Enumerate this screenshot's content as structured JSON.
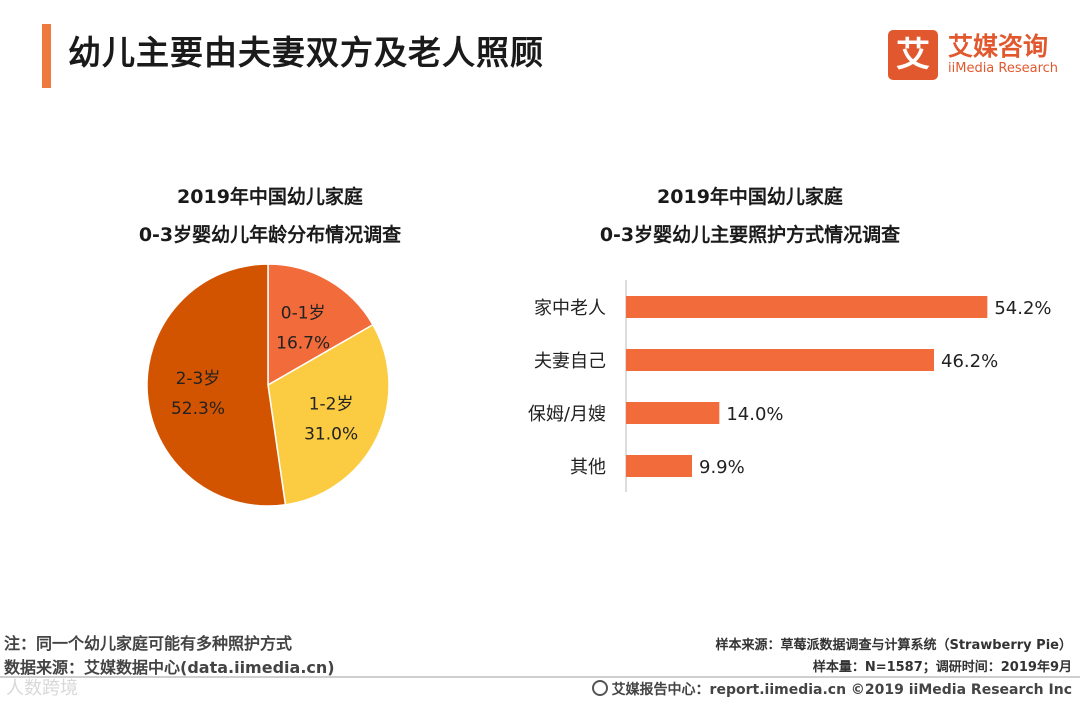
{
  "header": {
    "title": "幼儿主要由夫妻双方及老人照顾"
  },
  "logo": {
    "mark": "艾",
    "name_cn": "艾媒咨询",
    "name_en": "iiMedia Research"
  },
  "colors": {
    "accent": "#ef7a3d",
    "bar": "#f26b3a",
    "pie_0_1": "#f26b3a",
    "pie_1_2": "#fbcc41",
    "pie_2_3": "#d35400"
  },
  "chart_data": [
    {
      "type": "pie",
      "title_line1": "2019年中国幼儿家庭",
      "title_line2": "0-3岁婴幼儿年龄分布情况调查",
      "slices": [
        {
          "label": "0-1岁",
          "value": 16.7,
          "display": "16.7%",
          "color": "#f26b3a"
        },
        {
          "label": "1-2岁",
          "value": 31.0,
          "display": "31.0%",
          "color": "#fbcc41"
        },
        {
          "label": "2-3岁",
          "value": 52.3,
          "display": "52.3%",
          "color": "#d35400"
        }
      ]
    },
    {
      "type": "bar",
      "orientation": "horizontal",
      "title_line1": "2019年中国幼儿家庭",
      "title_line2": "0-3岁婴幼儿主要照护方式情况调查",
      "categories": [
        "家中老人",
        "夫妻自己",
        "保姆/月嫂",
        "其他"
      ],
      "values": [
        54.2,
        46.2,
        14.0,
        9.9
      ],
      "value_labels": [
        "54.2%",
        "46.2%",
        "14.0%",
        "9.9%"
      ],
      "xlim": [
        0,
        60
      ]
    }
  ],
  "notes": {
    "note": "注：同一个幼儿家庭可能有多种照护方式",
    "source": "数据来源：艾媒数据中心(data.iimedia.cn)"
  },
  "meta": {
    "sample_source": "样本来源：草莓派数据调查与计算系统（Strawberry Pie）",
    "sample_size": "样本量：N=1587；调研时间：2019年9月"
  },
  "footer": {
    "text": "艾媒报告中心：report.iimedia.cn  ©2019  iiMedia Research  Inc"
  },
  "watermark": "人数跨境"
}
